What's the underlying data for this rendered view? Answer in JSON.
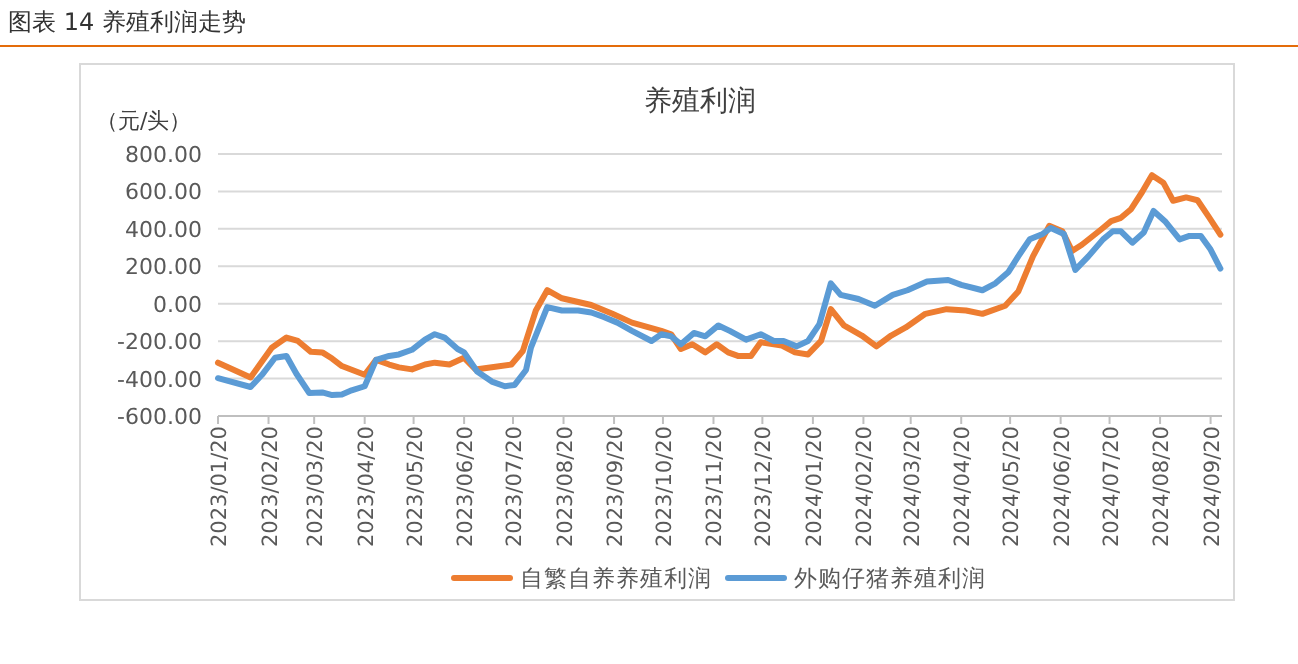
{
  "chart_data": {
    "type": "line",
    "title": "养殖利润",
    "ylabel": "（元/头）",
    "annotations": [
      "图表 14 养殖利润走势"
    ],
    "ylim": [
      -600,
      800
    ],
    "yticks": [
      {
        "value": -600,
        "label": "-600.00"
      },
      {
        "value": -400,
        "label": "-400.00"
      },
      {
        "value": -200,
        "label": "-200.00"
      },
      {
        "value": 0,
        "label": "0.00"
      },
      {
        "value": 200,
        "label": "200.00"
      },
      {
        "value": 400,
        "label": "400.00"
      },
      {
        "value": 600,
        "label": "600.00"
      },
      {
        "value": 800,
        "label": "800.00"
      }
    ],
    "xlim": [
      "2023-01-20",
      "2024-09-27"
    ],
    "xticks": [
      {
        "value": "2023-01-20",
        "label": "2023/01/20"
      },
      {
        "value": "2023-02-20",
        "label": "2023/02/20"
      },
      {
        "value": "2023-03-20",
        "label": "2023/03/20"
      },
      {
        "value": "2023-04-20",
        "label": "2023/04/20"
      },
      {
        "value": "2023-05-20",
        "label": "2023/05/20"
      },
      {
        "value": "2023-06-20",
        "label": "2023/06/20"
      },
      {
        "value": "2023-07-20",
        "label": "2023/07/20"
      },
      {
        "value": "2023-08-20",
        "label": "2023/08/20"
      },
      {
        "value": "2023-09-20",
        "label": "2023/09/20"
      },
      {
        "value": "2023-10-20",
        "label": "2023/10/20"
      },
      {
        "value": "2023-11-20",
        "label": "2023/11/20"
      },
      {
        "value": "2023-12-20",
        "label": "2023/12/20"
      },
      {
        "value": "2024-01-20",
        "label": "2024/01/20"
      },
      {
        "value": "2024-02-20",
        "label": "2024/02/20"
      },
      {
        "value": "2024-03-20",
        "label": "2024/03/20"
      },
      {
        "value": "2024-04-20",
        "label": "2024/04/20"
      },
      {
        "value": "2024-05-20",
        "label": "2024/05/20"
      },
      {
        "value": "2024-06-20",
        "label": "2024/06/20"
      },
      {
        "value": "2024-07-20",
        "label": "2024/07/20"
      },
      {
        "value": "2024-08-20",
        "label": "2024/08/20"
      },
      {
        "value": "2024-09-20",
        "label": "2024/09/20"
      }
    ],
    "grid": "y",
    "legend": "bottom",
    "marker": "none",
    "line_style": "solid",
    "series": [
      {
        "name": "自繁自养养殖利润",
        "color": "#ed7d31",
        "x": [
          "2023-01-20",
          "2023-02-09",
          "2023-02-22",
          "2023-03-03",
          "2023-03-10",
          "2023-03-18",
          "2023-03-25",
          "2023-03-31",
          "2023-04-06",
          "2023-04-20",
          "2023-04-27",
          "2023-05-05",
          "2023-05-11",
          "2023-05-19",
          "2023-05-27",
          "2023-06-02",
          "2023-06-11",
          "2023-06-20",
          "2023-06-27",
          "2023-07-07",
          "2023-07-19",
          "2023-07-26",
          "2023-08-03",
          "2023-08-10",
          "2023-08-19",
          "2023-09-06",
          "2023-09-19",
          "2023-10-01",
          "2023-10-19",
          "2023-10-25",
          "2023-10-31",
          "2023-11-07",
          "2023-11-15",
          "2023-11-22",
          "2023-11-29",
          "2023-12-05",
          "2023-12-13",
          "2023-12-19",
          "2024-01-01",
          "2024-01-09",
          "2024-01-17",
          "2024-01-25",
          "2024-01-31",
          "2024-02-08",
          "2024-02-19",
          "2024-02-28",
          "2024-03-08",
          "2024-03-17",
          "2024-03-29",
          "2024-04-11",
          "2024-04-23",
          "2024-05-03",
          "2024-05-09",
          "2024-05-17",
          "2024-05-25",
          "2024-06-03",
          "2024-06-13",
          "2024-06-21",
          "2024-06-27",
          "2024-07-03",
          "2024-07-15",
          "2024-07-21",
          "2024-07-27",
          "2024-08-02",
          "2024-08-09",
          "2024-08-15",
          "2024-08-22",
          "2024-08-28",
          "2024-09-05",
          "2024-09-12",
          "2024-09-19",
          "2024-09-26"
        ],
        "values": [
          -315,
          -394,
          -235,
          -181,
          -199,
          -257,
          -260,
          -293,
          -333,
          -380,
          -300,
          -325,
          -340,
          -351,
          -325,
          -315,
          -325,
          -289,
          -351,
          -340,
          -325,
          -253,
          -36,
          72,
          29,
          -7,
          -54,
          -101,
          -145,
          -163,
          -242,
          -217,
          -260,
          -217,
          -260,
          -279,
          -279,
          -206,
          -224,
          -260,
          -271,
          -199,
          -29,
          -116,
          -170,
          -228,
          -170,
          -127,
          -54,
          -29,
          -36,
          -54,
          -36,
          -11,
          65,
          253,
          416,
          387,
          282,
          315,
          398,
          441,
          459,
          503,
          597,
          687,
          647,
          550,
          568,
          553,
          463,
          369
        ]
      },
      {
        "name": "外购仔猪养殖利润",
        "color": "#5b9bd5",
        "x": [
          "2023-01-20",
          "2023-02-09",
          "2023-02-16",
          "2023-02-24",
          "2023-03-03",
          "2023-03-09",
          "2023-03-17",
          "2023-03-25",
          "2023-03-31",
          "2023-04-06",
          "2023-04-12",
          "2023-04-20",
          "2023-04-27",
          "2023-05-05",
          "2023-05-11",
          "2023-05-19",
          "2023-05-27",
          "2023-06-02",
          "2023-06-08",
          "2023-06-16",
          "2023-06-20",
          "2023-06-28",
          "2023-07-07",
          "2023-07-15",
          "2023-07-21",
          "2023-07-28",
          "2023-07-31",
          "2023-08-10",
          "2023-08-19",
          "2023-08-29",
          "2023-09-06",
          "2023-09-14",
          "2023-09-22",
          "2023-10-01",
          "2023-10-13",
          "2023-10-19",
          "2023-10-25",
          "2023-10-31",
          "2023-11-08",
          "2023-11-15",
          "2023-11-23",
          "2023-11-30",
          "2023-12-10",
          "2023-12-19",
          "2023-12-27",
          "2024-01-02",
          "2024-01-10",
          "2024-01-17",
          "2024-01-24",
          "2024-01-31",
          "2024-02-06",
          "2024-02-17",
          "2024-02-27",
          "2024-03-09",
          "2024-03-18",
          "2024-03-30",
          "2024-04-12",
          "2024-04-20",
          "2024-05-03",
          "2024-05-11",
          "2024-05-19",
          "2024-05-25",
          "2024-06-01",
          "2024-06-09",
          "2024-06-14",
          "2024-06-22",
          "2024-06-29",
          "2024-07-07",
          "2024-07-16",
          "2024-07-22",
          "2024-07-27",
          "2024-08-03",
          "2024-08-10",
          "2024-08-16",
          "2024-08-23",
          "2024-09-01",
          "2024-09-07",
          "2024-09-14",
          "2024-09-20",
          "2024-09-26"
        ],
        "values": [
          -398,
          -445,
          -380,
          -289,
          -279,
          -373,
          -477,
          -474,
          -488,
          -485,
          -463,
          -441,
          -300,
          -279,
          -271,
          -246,
          -192,
          -163,
          -181,
          -242,
          -260,
          -362,
          -416,
          -441,
          -434,
          -354,
          -235,
          -18,
          -36,
          -36,
          -47,
          -72,
          -101,
          -145,
          -199,
          -163,
          -174,
          -217,
          -156,
          -174,
          -116,
          -145,
          -192,
          -163,
          -199,
          -199,
          -228,
          -199,
          -109,
          109,
          47,
          25,
          -11,
          47,
          72,
          119,
          127,
          101,
          72,
          109,
          170,
          253,
          344,
          373,
          405,
          373,
          181,
          253,
          344,
          387,
          387,
          326,
          380,
          496,
          441,
          344,
          362,
          362,
          289,
          188
        ]
      }
    ]
  }
}
